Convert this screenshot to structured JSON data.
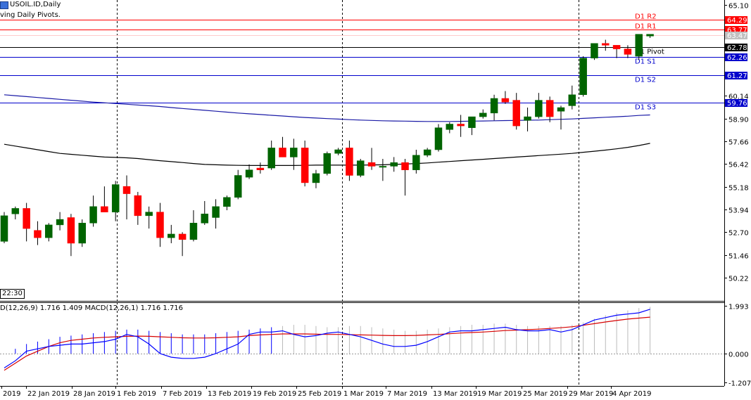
{
  "header": {
    "symbol_line": "USOIL.ID,Daily",
    "indicator_line": "ving Daily Pivots.",
    "macd_line": "D(12,26,9) 1.716 1.409 MACD(12,26,1) 1.716 1.716",
    "time_box": "22:30"
  },
  "colors": {
    "bull": "#006400",
    "bear": "#ff0000",
    "resistance": "#ff0000",
    "support": "#0000cc",
    "pivot": "#000000",
    "ma_slow": "#000000",
    "ma_fast": "#1a1aa6",
    "macd_hist": "#0000ff",
    "macd_signal": "#d60000",
    "macd_line": "#0000ff",
    "grid_sep": "#000000"
  },
  "chart_data": [
    {
      "type": "candlestick",
      "yticks": [
        "65.10",
        "60.14",
        "58.90",
        "57.66",
        "56.42",
        "55.18",
        "53.94",
        "52.70",
        "51.46",
        "50.22"
      ],
      "ylim": [
        49.3,
        65.5
      ],
      "xticks": [
        "2019",
        "22 Jan 2019",
        "28 Jan 2019",
        "1 Feb 2019",
        "7 Feb 2019",
        "13 Feb 2019",
        "19 Feb 2019",
        "25 Feb 2019",
        "1 Mar 2019",
        "7 Mar 2019",
        "13 Mar 2019",
        "19 Mar 2019",
        "25 Mar 2019",
        "29 Mar 2019",
        "4 Apr 2019"
      ],
      "price_levels": [
        {
          "name": "D1 R2",
          "value": 64.29,
          "color": "#ff0000",
          "label_bg": "#ff0000"
        },
        {
          "name": "D1 R1",
          "value": 63.77,
          "color": "#ff0000",
          "label_bg": "#ff0000"
        },
        {
          "name": "",
          "value": 63.47,
          "color": "#ffcccc",
          "label_bg": "#c0c0c0",
          "label": "63.47"
        },
        {
          "name": "D1 Pivot",
          "value": 62.78,
          "color": "#000000",
          "label_bg": "#000000"
        },
        {
          "name": "D1 S1",
          "value": 62.26,
          "color": "#0000cc",
          "label_bg": "#0000cc"
        },
        {
          "name": "D1 S2",
          "value": 61.27,
          "color": "#0000cc",
          "label_bg": "#0000cc"
        },
        {
          "name": "D1 S3",
          "value": 59.76,
          "color": "#0000cc",
          "label_bg": "#0000cc"
        }
      ],
      "candles": [
        {
          "o": 52.2,
          "h": 53.8,
          "l": 52.1,
          "c": 53.6
        },
        {
          "o": 53.7,
          "h": 54.1,
          "l": 53.4,
          "c": 54.0
        },
        {
          "o": 54.0,
          "h": 54.3,
          "l": 52.2,
          "c": 52.9
        },
        {
          "o": 52.8,
          "h": 53.3,
          "l": 52.0,
          "c": 52.4
        },
        {
          "o": 52.4,
          "h": 53.2,
          "l": 52.2,
          "c": 53.1
        },
        {
          "o": 53.1,
          "h": 53.8,
          "l": 52.8,
          "c": 53.4
        },
        {
          "o": 53.5,
          "h": 53.7,
          "l": 51.4,
          "c": 52.1
        },
        {
          "o": 52.1,
          "h": 53.4,
          "l": 51.9,
          "c": 53.2
        },
        {
          "o": 53.2,
          "h": 54.7,
          "l": 53.0,
          "c": 54.1
        },
        {
          "o": 54.1,
          "h": 55.2,
          "l": 53.8,
          "c": 53.8
        },
        {
          "o": 53.8,
          "h": 55.5,
          "l": 53.3,
          "c": 55.3
        },
        {
          "o": 55.2,
          "h": 55.8,
          "l": 53.4,
          "c": 54.8
        },
        {
          "o": 54.7,
          "h": 54.9,
          "l": 53.1,
          "c": 53.6
        },
        {
          "o": 53.6,
          "h": 54.1,
          "l": 52.9,
          "c": 53.8
        },
        {
          "o": 53.8,
          "h": 54.3,
          "l": 51.9,
          "c": 52.4
        },
        {
          "o": 52.4,
          "h": 53.1,
          "l": 52.1,
          "c": 52.6
        },
        {
          "o": 52.6,
          "h": 52.7,
          "l": 51.4,
          "c": 52.3
        },
        {
          "o": 52.3,
          "h": 53.9,
          "l": 52.2,
          "c": 53.2
        },
        {
          "o": 53.2,
          "h": 54.4,
          "l": 53.1,
          "c": 53.7
        },
        {
          "o": 53.5,
          "h": 54.5,
          "l": 52.9,
          "c": 54.1
        },
        {
          "o": 54.1,
          "h": 54.7,
          "l": 53.9,
          "c": 54.6
        },
        {
          "o": 54.6,
          "h": 56.1,
          "l": 54.5,
          "c": 55.8
        },
        {
          "o": 55.7,
          "h": 56.4,
          "l": 55.6,
          "c": 56.1
        },
        {
          "o": 56.2,
          "h": 56.5,
          "l": 55.9,
          "c": 56.1
        },
        {
          "o": 56.2,
          "h": 57.7,
          "l": 56.1,
          "c": 57.3
        },
        {
          "o": 57.3,
          "h": 57.9,
          "l": 56.8,
          "c": 56.8
        },
        {
          "o": 56.8,
          "h": 57.8,
          "l": 56.1,
          "c": 57.3
        },
        {
          "o": 57.3,
          "h": 57.7,
          "l": 55.2,
          "c": 55.4
        },
        {
          "o": 55.4,
          "h": 56.1,
          "l": 55.1,
          "c": 55.9
        },
        {
          "o": 55.9,
          "h": 57.1,
          "l": 55.8,
          "c": 57.0
        },
        {
          "o": 57.0,
          "h": 57.3,
          "l": 56.9,
          "c": 57.2
        },
        {
          "o": 57.3,
          "h": 57.7,
          "l": 55.5,
          "c": 55.8
        },
        {
          "o": 55.8,
          "h": 56.7,
          "l": 55.7,
          "c": 56.6
        },
        {
          "o": 56.5,
          "h": 57.3,
          "l": 56.1,
          "c": 56.3
        },
        {
          "o": 56.3,
          "h": 56.7,
          "l": 55.5,
          "c": 56.3
        },
        {
          "o": 56.3,
          "h": 56.8,
          "l": 56.0,
          "c": 56.5
        },
        {
          "o": 56.5,
          "h": 56.7,
          "l": 54.7,
          "c": 56.1
        },
        {
          "o": 56.1,
          "h": 57.2,
          "l": 55.9,
          "c": 56.9
        },
        {
          "o": 56.9,
          "h": 57.3,
          "l": 56.8,
          "c": 57.2
        },
        {
          "o": 57.2,
          "h": 58.6,
          "l": 57.1,
          "c": 58.4
        },
        {
          "o": 58.3,
          "h": 58.7,
          "l": 58.1,
          "c": 58.6
        },
        {
          "o": 58.6,
          "h": 59.1,
          "l": 57.9,
          "c": 58.5
        },
        {
          "o": 58.4,
          "h": 59.0,
          "l": 58.0,
          "c": 59.0
        },
        {
          "o": 59.0,
          "h": 59.4,
          "l": 58.9,
          "c": 59.2
        },
        {
          "o": 59.2,
          "h": 60.2,
          "l": 58.8,
          "c": 60.0
        },
        {
          "o": 60.0,
          "h": 60.4,
          "l": 59.7,
          "c": 59.8
        },
        {
          "o": 59.9,
          "h": 60.3,
          "l": 58.3,
          "c": 58.5
        },
        {
          "o": 58.8,
          "h": 59.5,
          "l": 58.2,
          "c": 59.0
        },
        {
          "o": 59.0,
          "h": 60.3,
          "l": 58.9,
          "c": 59.9
        },
        {
          "o": 59.9,
          "h": 60.1,
          "l": 58.7,
          "c": 59.0
        },
        {
          "o": 59.3,
          "h": 59.6,
          "l": 58.3,
          "c": 59.5
        },
        {
          "o": 59.6,
          "h": 60.7,
          "l": 59.4,
          "c": 60.2
        },
        {
          "o": 60.2,
          "h": 62.3,
          "l": 60.1,
          "c": 62.2
        },
        {
          "o": 62.2,
          "h": 63.0,
          "l": 62.1,
          "c": 63.0
        },
        {
          "o": 63.0,
          "h": 63.2,
          "l": 62.6,
          "c": 62.9
        },
        {
          "o": 62.9,
          "h": 62.9,
          "l": 62.2,
          "c": 62.7
        },
        {
          "o": 62.7,
          "h": 62.9,
          "l": 62.2,
          "c": 62.4
        },
        {
          "o": 62.3,
          "h": 63.5,
          "l": 62.1,
          "c": 63.5
        },
        {
          "o": 63.4,
          "h": 63.5,
          "l": 63.3,
          "c": 63.5
        }
      ],
      "ma_fast": [
        60.2,
        60.15,
        60.1,
        60.05,
        60.0,
        59.95,
        59.9,
        59.85,
        59.8,
        59.76,
        59.72,
        59.68,
        59.64,
        59.6,
        59.56,
        59.5,
        59.45,
        59.4,
        59.35,
        59.3,
        59.25,
        59.2,
        59.16,
        59.12,
        59.08,
        59.04,
        59.0,
        58.96,
        58.93,
        58.9,
        58.87,
        58.84,
        58.82,
        58.8,
        58.78,
        58.77,
        58.76,
        58.75,
        58.74,
        58.74,
        58.74,
        58.75,
        58.76,
        58.77,
        58.78,
        58.79,
        58.8,
        58.81,
        58.82,
        58.84,
        58.86,
        58.88,
        58.91,
        58.94,
        58.97,
        59.0,
        59.03,
        59.07,
        59.1
      ],
      "ma_slow": [
        57.5,
        57.4,
        57.3,
        57.2,
        57.1,
        57.0,
        56.95,
        56.9,
        56.85,
        56.8,
        56.78,
        56.76,
        56.72,
        56.66,
        56.6,
        56.55,
        56.5,
        56.45,
        56.4,
        56.38,
        56.36,
        56.35,
        56.34,
        56.34,
        56.34,
        56.34,
        56.34,
        56.35,
        56.36,
        56.36,
        56.36,
        56.36,
        56.36,
        56.37,
        56.38,
        56.4,
        56.42,
        56.45,
        56.48,
        56.52,
        56.56,
        56.6,
        56.64,
        56.68,
        56.72,
        56.76,
        56.8,
        56.84,
        56.88,
        56.92,
        56.96,
        57.0,
        57.06,
        57.12,
        57.18,
        57.25,
        57.33,
        57.43,
        57.55
      ]
    },
    {
      "type": "macd",
      "yticks": [
        "1.993",
        "0.000",
        "-1.207"
      ],
      "ylim": [
        -1.207,
        1.993
      ],
      "histogram": [
        0.0,
        0.2,
        0.4,
        0.5,
        0.6,
        0.7,
        0.75,
        0.8,
        0.85,
        0.9,
        0.95,
        1.0,
        1.0,
        0.95,
        0.9,
        0.85,
        0.8,
        0.8,
        0.8,
        0.85,
        0.9,
        0.95,
        1.0,
        1.05,
        1.1,
        1.15,
        1.2,
        1.2,
        1.15,
        1.1,
        1.1,
        1.15,
        1.15,
        1.1,
        1.05,
        1.0,
        0.95,
        0.95,
        1.0,
        1.05,
        1.1,
        1.15,
        1.2,
        1.2,
        1.25,
        1.25,
        1.2,
        1.15,
        1.15,
        1.15,
        1.15,
        1.2,
        1.3,
        1.45,
        1.6,
        1.7,
        1.8,
        1.9,
        1.95
      ],
      "macd": [
        -0.6,
        -0.3,
        0.1,
        0.2,
        0.3,
        0.35,
        0.4,
        0.4,
        0.45,
        0.5,
        0.6,
        0.8,
        0.7,
        0.4,
        0.0,
        -0.15,
        -0.2,
        -0.2,
        -0.15,
        0.0,
        0.2,
        0.4,
        0.8,
        0.9,
        0.9,
        0.95,
        0.8,
        0.7,
        0.75,
        0.85,
        0.9,
        0.8,
        0.7,
        0.55,
        0.4,
        0.3,
        0.3,
        0.35,
        0.5,
        0.7,
        0.9,
        0.95,
        0.95,
        1.0,
        1.05,
        1.1,
        1.0,
        0.95,
        0.95,
        1.0,
        0.9,
        1.0,
        1.2,
        1.4,
        1.5,
        1.6,
        1.65,
        1.7,
        1.85
      ],
      "signal": [
        -0.7,
        -0.4,
        -0.1,
        0.1,
        0.3,
        0.45,
        0.55,
        0.6,
        0.65,
        0.68,
        0.7,
        0.72,
        0.73,
        0.72,
        0.7,
        0.68,
        0.66,
        0.65,
        0.65,
        0.66,
        0.68,
        0.7,
        0.75,
        0.78,
        0.8,
        0.82,
        0.82,
        0.82,
        0.81,
        0.8,
        0.8,
        0.79,
        0.78,
        0.77,
        0.76,
        0.75,
        0.75,
        0.76,
        0.78,
        0.8,
        0.83,
        0.86,
        0.88,
        0.9,
        0.93,
        0.96,
        0.98,
        1.0,
        1.02,
        1.05,
        1.08,
        1.12,
        1.18,
        1.25,
        1.32,
        1.38,
        1.44,
        1.48,
        1.52
      ]
    }
  ]
}
